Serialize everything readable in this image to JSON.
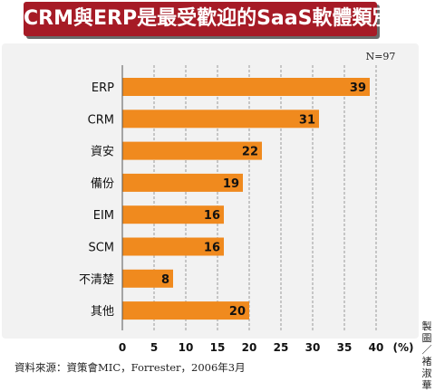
{
  "chart_data": {
    "type": "bar",
    "orientation": "horizontal",
    "title": "CRM與ERP是最受歡迎的SaaS軟體類別",
    "sample_note": "N=97",
    "categories": [
      "ERP",
      "CRM",
      "資安",
      "備份",
      "EIM",
      "SCM",
      "不清楚",
      "其他"
    ],
    "values": [
      39,
      31,
      22,
      19,
      16,
      16,
      8,
      20
    ],
    "xlim": [
      0,
      40
    ],
    "xticks": [
      0,
      5,
      10,
      15,
      20,
      25,
      30,
      35,
      40
    ],
    "unit_label": "(%)",
    "grid": true,
    "bar_color": "#f08a1e"
  },
  "footer": {
    "source": "資料來源：資策會MIC，Forrester，2006年3月",
    "credit": "製圖／褚淑華"
  },
  "colors": {
    "title_background": "#a61b26",
    "panel_background": "#f2f2f2"
  }
}
